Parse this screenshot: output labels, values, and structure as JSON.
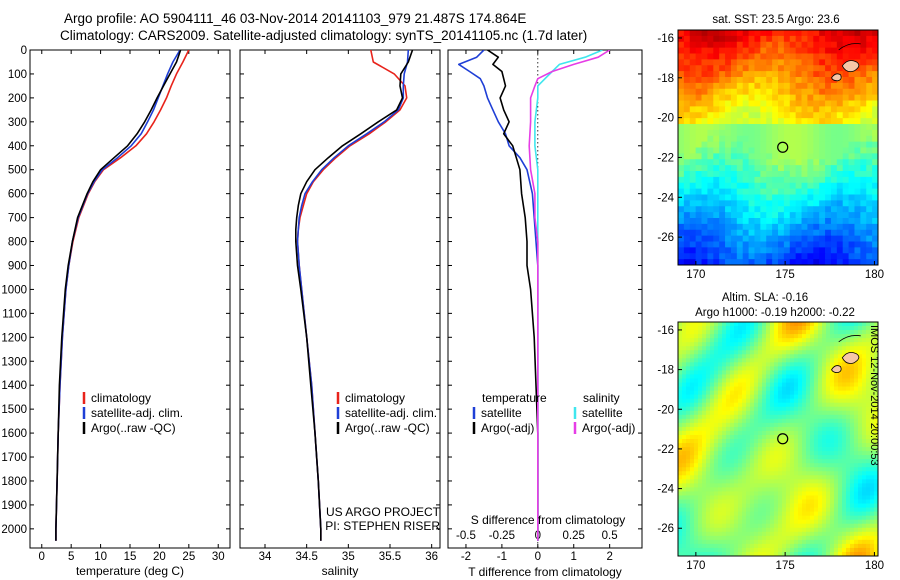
{
  "figure": {
    "title_line1": "Argo profile: AO 5904111_46 03-Nov-2014 20141103_979 21.487S 174.864E",
    "title_line2": "Climatology: CARS2009. Satellite-adjusted climatology: synTS_20141105.nc (1.7d later)",
    "credit_line1": "US ARGO PROJECT",
    "credit_line2": "PI: STEPHEN RISER",
    "timestamp": "IMOS 12-Nov-2014 20:00:53"
  },
  "colors": {
    "climatology": "#e8231b",
    "satellite": "#1f3fd6",
    "argo": "#000000",
    "sal_satellite": "#3fe6ee",
    "sal_argo": "#e63de6",
    "land": "#f6c7a7"
  },
  "chart_data": [
    {
      "type": "line",
      "id": "temperature",
      "xlabel": "temperature (deg C)",
      "xlim": [
        -2,
        32
      ],
      "xticks": [
        0,
        5,
        10,
        15,
        20,
        25,
        30
      ],
      "ylim": [
        2080,
        0
      ],
      "yticks": [
        0,
        100,
        200,
        300,
        400,
        500,
        600,
        700,
        800,
        900,
        1000,
        1100,
        1200,
        1300,
        1400,
        1500,
        1600,
        1700,
        1800,
        1900,
        2000
      ],
      "legend": [
        "climatology",
        "satellite-adj. clim.",
        "Argo(..raw -QC)"
      ],
      "series": [
        {
          "name": "climatology",
          "depth": [
            0,
            50,
            100,
            150,
            200,
            250,
            300,
            350,
            400,
            450,
            500,
            550,
            600,
            700,
            800,
            900,
            1000,
            1200,
            1400,
            1600,
            1800,
            2000,
            2050
          ],
          "values": [
            25.0,
            24.0,
            22.9,
            22.0,
            21.2,
            20.2,
            19.1,
            17.8,
            16.0,
            13.4,
            10.5,
            9.0,
            7.9,
            6.3,
            5.3,
            4.6,
            4.1,
            3.5,
            3.1,
            2.8,
            2.6,
            2.4,
            2.4
          ]
        },
        {
          "name": "satellite-adj. clim.",
          "depth": [
            0,
            50,
            100,
            150,
            200,
            250,
            300,
            350,
            400,
            450,
            500,
            550,
            600,
            700,
            800,
            900,
            1000,
            1200,
            1400,
            1600,
            1800,
            2000,
            2050
          ],
          "values": [
            23.5,
            22.3,
            21.4,
            20.6,
            19.8,
            19.0,
            18.0,
            16.9,
            15.2,
            12.9,
            10.3,
            8.9,
            7.8,
            6.2,
            5.2,
            4.6,
            4.1,
            3.5,
            3.1,
            2.8,
            2.6,
            2.4,
            2.4
          ]
        },
        {
          "name": "Argo(..raw -QC)",
          "depth": [
            0,
            50,
            100,
            150,
            200,
            250,
            300,
            350,
            400,
            450,
            500,
            550,
            600,
            700,
            800,
            900,
            1000,
            1200,
            1400,
            1600,
            1800,
            2000,
            2050
          ],
          "values": [
            23.6,
            22.9,
            21.8,
            20.7,
            19.6,
            18.6,
            17.5,
            16.2,
            14.6,
            12.3,
            10.0,
            8.7,
            7.7,
            6.1,
            5.2,
            4.5,
            4.0,
            3.4,
            3.0,
            2.8,
            2.6,
            2.4,
            2.4
          ]
        }
      ]
    },
    {
      "type": "line",
      "id": "salinity",
      "xlabel": "salinity",
      "xlim": [
        33.7,
        36.1
      ],
      "xticks": [
        34,
        34.5,
        35,
        35.5,
        36
      ],
      "ylim": [
        2080,
        0
      ],
      "legend": [
        "climatology",
        "satellite-adj. clim.",
        "Argo(..raw -QC)"
      ],
      "series": [
        {
          "name": "climatology",
          "depth": [
            0,
            50,
            100,
            150,
            200,
            250,
            300,
            350,
            400,
            450,
            500,
            550,
            600,
            650,
            700,
            750,
            800,
            900,
            1000,
            1200,
            1400,
            1600,
            1800,
            2000,
            2050
          ],
          "values": [
            35.27,
            35.3,
            35.55,
            35.68,
            35.7,
            35.62,
            35.45,
            35.25,
            35.02,
            34.85,
            34.7,
            34.58,
            34.5,
            34.46,
            34.42,
            34.4,
            34.39,
            34.41,
            34.44,
            34.5,
            34.56,
            34.6,
            34.64,
            34.67,
            34.67
          ]
        },
        {
          "name": "satellite-adj. clim.",
          "depth": [
            0,
            50,
            100,
            150,
            200,
            250,
            300,
            350,
            400,
            450,
            500,
            550,
            600,
            650,
            700,
            750,
            800,
            900,
            1000,
            1200,
            1400,
            1600,
            1800,
            2000,
            2050
          ],
          "values": [
            35.72,
            35.71,
            35.67,
            35.66,
            35.66,
            35.6,
            35.43,
            35.22,
            35.0,
            34.83,
            34.68,
            34.57,
            34.48,
            34.44,
            34.41,
            34.4,
            34.39,
            34.41,
            34.44,
            34.5,
            34.56,
            34.6,
            34.64,
            34.67,
            34.67
          ]
        },
        {
          "name": "Argo(..raw -QC)",
          "depth": [
            0,
            50,
            100,
            150,
            200,
            250,
            300,
            350,
            400,
            450,
            500,
            550,
            600,
            650,
            700,
            750,
            800,
            900,
            1000,
            1200,
            1400,
            1600,
            1800,
            2000,
            2050
          ],
          "values": [
            35.77,
            35.72,
            35.63,
            35.62,
            35.65,
            35.58,
            35.36,
            35.15,
            34.93,
            34.76,
            34.6,
            34.5,
            34.43,
            34.4,
            34.38,
            34.37,
            34.37,
            34.39,
            34.43,
            34.5,
            34.55,
            34.6,
            34.64,
            34.67,
            34.67
          ]
        }
      ]
    },
    {
      "type": "line",
      "id": "differences",
      "xlabel": "T difference from climatology",
      "xlabel_top": "S difference from climatology",
      "xlim": [
        -2.5,
        2.9
      ],
      "xticks_T": [
        -2,
        -1,
        0,
        1,
        2
      ],
      "xticks_S": [
        -0.5,
        -0.25,
        0,
        0.25,
        0.5
      ],
      "ylim": [
        2080,
        0
      ],
      "legend": {
        "temperature_title": "temperature",
        "salinity_title": "salinity",
        "entries": [
          "satellite",
          "Argo(-adj)",
          "satellite",
          "Argo(-adj)"
        ]
      },
      "series": [
        {
          "name": "temperature satellite",
          "depth": [
            0,
            30,
            60,
            90,
            120,
            150,
            200,
            250,
            300,
            350,
            400,
            450,
            500,
            600,
            700,
            800,
            900,
            1000,
            1200,
            1400,
            1600,
            1800,
            2000,
            2050
          ],
          "values": [
            -1.5,
            -1.7,
            -2.2,
            -1.9,
            -1.6,
            -1.5,
            -1.4,
            -1.25,
            -1.1,
            -0.9,
            -0.8,
            -0.5,
            -0.3,
            -0.15,
            -0.1,
            -0.05,
            0,
            0,
            0,
            0,
            0,
            0,
            0,
            0
          ]
        },
        {
          "name": "temperature Argo(-adj)",
          "depth": [
            0,
            30,
            60,
            90,
            120,
            150,
            200,
            250,
            300,
            350,
            400,
            450,
            500,
            600,
            700,
            800,
            900,
            1000,
            1200,
            1400,
            1600,
            1800,
            2000,
            2050
          ],
          "values": [
            -1.4,
            -1.1,
            -1.25,
            -1.0,
            -0.95,
            -0.9,
            -1.05,
            -0.95,
            -0.8,
            -0.95,
            -0.7,
            -0.6,
            -0.5,
            -0.45,
            -0.35,
            -0.3,
            -0.3,
            -0.2,
            -0.1,
            -0.05,
            0,
            0,
            0,
            0
          ]
        },
        {
          "name": "salinity satellite",
          "depth": [
            0,
            30,
            60,
            90,
            120,
            150,
            200,
            300,
            400,
            500,
            600,
            700,
            800,
            1000,
            1200,
            1400,
            1600,
            1800,
            2000,
            2050
          ],
          "values": [
            0.45,
            0.33,
            0.15,
            0.1,
            0.05,
            0.0,
            0.0,
            -0.02,
            -0.02,
            0.0,
            0.0,
            0.0,
            0.0,
            0.0,
            0.0,
            0.0,
            0.0,
            0.0,
            0.0,
            0.0
          ]
        },
        {
          "name": "salinity Argo(-adj)",
          "depth": [
            0,
            30,
            60,
            90,
            120,
            150,
            200,
            300,
            400,
            500,
            600,
            700,
            800,
            1000,
            1200,
            1400,
            1600,
            1800,
            2000,
            2050
          ],
          "values": [
            0.5,
            0.42,
            0.25,
            0.1,
            0.0,
            -0.02,
            -0.05,
            -0.05,
            -0.06,
            -0.05,
            -0.02,
            -0.02,
            0.0,
            0.0,
            0.0,
            0.0,
            0.0,
            0.0,
            0.0,
            0.0
          ]
        }
      ]
    },
    {
      "type": "heatmap",
      "id": "sst_map",
      "title": "sat. SST: 23.5 Argo: 23.6",
      "xlim": [
        169,
        180.2
      ],
      "ylim": [
        -27.4,
        -15.6
      ],
      "xticks": [
        170,
        175,
        180
      ],
      "yticks": [
        -16,
        -18,
        -20,
        -22,
        -24,
        -26
      ],
      "marker": {
        "lon": 174.864,
        "lat": -21.487
      }
    },
    {
      "type": "heatmap",
      "id": "sla_map",
      "title_line1": "Altim. SLA: -0.16",
      "title_line2": "Argo h1000: -0.19 h2000: -0.22",
      "xlim": [
        169,
        180.2
      ],
      "ylim": [
        -27.4,
        -15.6
      ],
      "xticks": [
        170,
        175,
        180
      ],
      "yticks": [
        -16,
        -18,
        -20,
        -22,
        -24,
        -26
      ],
      "marker": {
        "lon": 174.864,
        "lat": -21.487
      }
    }
  ]
}
